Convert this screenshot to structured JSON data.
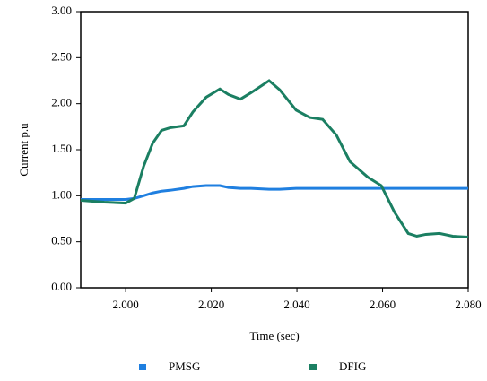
{
  "chart_data": {
    "type": "line",
    "x_label": "Time (sec)",
    "y_label": "Current p.u",
    "x": [
      1.9895,
      1.995,
      2.0,
      2.002,
      2.0042,
      2.0063,
      2.0084,
      2.0105,
      2.0136,
      2.0157,
      2.0188,
      2.022,
      2.024,
      2.0268,
      2.0293,
      2.0335,
      2.036,
      2.0398,
      2.043,
      2.046,
      2.0492,
      2.0524,
      2.0566,
      2.0597,
      2.0628,
      2.066,
      2.068,
      2.0701,
      2.0733,
      2.0764,
      2.08
    ],
    "series": [
      {
        "name": "PMSG",
        "color": "#1f7fe0",
        "values": [
          0.96,
          0.96,
          0.96,
          0.97,
          1.0,
          1.03,
          1.05,
          1.06,
          1.08,
          1.1,
          1.11,
          1.11,
          1.09,
          1.08,
          1.08,
          1.07,
          1.07,
          1.08,
          1.08,
          1.08,
          1.08,
          1.08,
          1.08,
          1.08,
          1.08,
          1.08,
          1.08,
          1.08,
          1.08,
          1.08,
          1.08
        ]
      },
      {
        "name": "DFIG",
        "color": "#1b7f62",
        "values": [
          0.95,
          0.93,
          0.92,
          0.97,
          1.32,
          1.57,
          1.71,
          1.74,
          1.76,
          1.91,
          2.07,
          2.16,
          2.1,
          2.05,
          2.12,
          2.25,
          2.15,
          1.93,
          1.85,
          1.83,
          1.66,
          1.37,
          1.2,
          1.11,
          0.82,
          0.59,
          0.56,
          0.58,
          0.59,
          0.56,
          0.55
        ]
      }
    ],
    "xlim": [
      1.9895,
      2.08
    ],
    "xticks": [
      {
        "value": 2.0,
        "label": "2.000"
      },
      {
        "value": 2.02,
        "label": "2.020"
      },
      {
        "value": 2.04,
        "label": "2.040"
      },
      {
        "value": 2.06,
        "label": "2.060"
      },
      {
        "value": 2.08,
        "label": "2.080"
      }
    ],
    "ylim": [
      0,
      3
    ],
    "yticks": [
      {
        "value": 0,
        "label": "0.00"
      },
      {
        "value": 0.5,
        "label": "0.50"
      },
      {
        "value": 1,
        "label": "1.00"
      },
      {
        "value": 1.5,
        "label": "1.50"
      },
      {
        "value": 2,
        "label": "2.00"
      },
      {
        "value": 2.5,
        "label": "2.50"
      },
      {
        "value": 3,
        "label": "3.00"
      }
    ],
    "legend": "bottom"
  }
}
